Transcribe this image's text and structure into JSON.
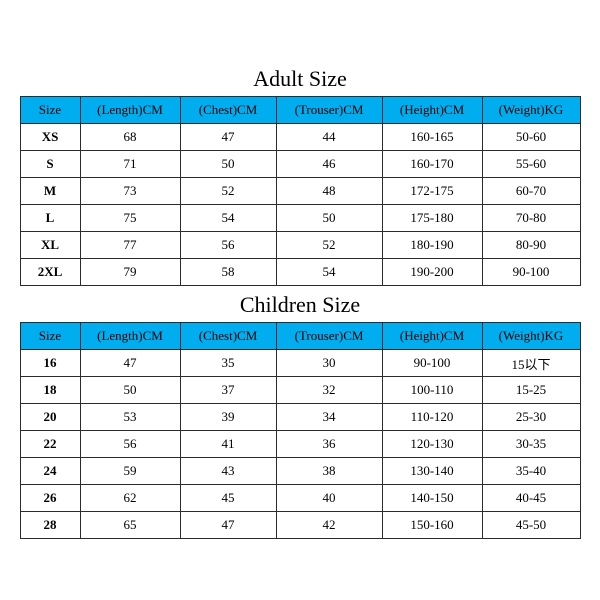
{
  "colors": {
    "header_bg": "#00aef0",
    "border": "#2b2b2b",
    "text": "#000000",
    "page_bg": "#ffffff"
  },
  "adult": {
    "title": "Adult Size",
    "columns": [
      "Size",
      "(Length)CM",
      "(Chest)CM",
      "(Trouser)CM",
      "(Height)CM",
      "(Weight)KG"
    ],
    "rows": [
      [
        "XS",
        "68",
        "47",
        "44",
        "160-165",
        "50-60"
      ],
      [
        "S",
        "71",
        "50",
        "46",
        "160-170",
        "55-60"
      ],
      [
        "M",
        "73",
        "52",
        "48",
        "172-175",
        "60-70"
      ],
      [
        "L",
        "75",
        "54",
        "50",
        "175-180",
        "70-80"
      ],
      [
        "XL",
        "77",
        "56",
        "52",
        "180-190",
        "80-90"
      ],
      [
        "2XL",
        "79",
        "58",
        "54",
        "190-200",
        "90-100"
      ]
    ]
  },
  "children": {
    "title": "Children Size",
    "columns": [
      "Size",
      "(Length)CM",
      "(Chest)CM",
      "(Trouser)CM",
      "(Height)CM",
      "(Weight)KG"
    ],
    "rows": [
      [
        "16",
        "47",
        "35",
        "30",
        "90-100",
        "15以下"
      ],
      [
        "18",
        "50",
        "37",
        "32",
        "100-110",
        "15-25"
      ],
      [
        "20",
        "53",
        "39",
        "34",
        "110-120",
        "25-30"
      ],
      [
        "22",
        "56",
        "41",
        "36",
        "120-130",
        "30-35"
      ],
      [
        "24",
        "59",
        "43",
        "38",
        "130-140",
        "35-40"
      ],
      [
        "26",
        "62",
        "45",
        "40",
        "140-150",
        "40-45"
      ],
      [
        "28",
        "65",
        "47",
        "42",
        "150-160",
        "45-50"
      ]
    ]
  }
}
